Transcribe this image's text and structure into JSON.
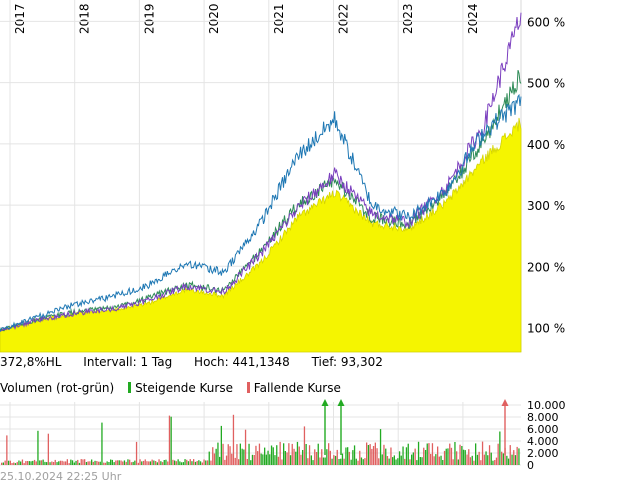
{
  "chart_data": [
    {
      "type": "area",
      "x_labels": [
        "2017",
        "2018",
        "2019",
        "2020",
        "2021",
        "2022",
        "2023",
        "2024"
      ],
      "y_ticks": [
        100,
        200,
        300,
        400,
        500,
        600
      ],
      "y_tick_labels": [
        "100 %",
        "200 %",
        "300 %",
        "400 %",
        "500 %",
        "600 %"
      ],
      "ylim": [
        60,
        635
      ],
      "grid": true,
      "series": [
        {
          "color": "#f5f500",
          "values": [
            95,
            112,
            122,
            128,
            140,
            162,
            152,
            205,
            280,
            320,
            270,
            262,
            305,
            375,
            435
          ]
        },
        {
          "color": "#2e8b57",
          "values": [
            95,
            113,
            125,
            132,
            148,
            170,
            160,
            225,
            300,
            340,
            280,
            270,
            320,
            405,
            515
          ]
        },
        {
          "color": "#7b3fbf",
          "values": [
            95,
            112,
            123,
            130,
            145,
            168,
            158,
            220,
            295,
            350,
            285,
            272,
            330,
            430,
            610
          ]
        },
        {
          "color": "#1f78b4",
          "values": [
            95,
            118,
            138,
            150,
            170,
            205,
            190,
            270,
            380,
            440,
            300,
            280,
            325,
            420,
            470
          ]
        }
      ]
    },
    {
      "type": "bar",
      "ylabel": "Volumen (rot-grün)",
      "y_ticks": [
        0,
        2000,
        4000,
        6000,
        8000,
        10000
      ],
      "y_tick_labels": [
        "0",
        "2.000",
        "4.000",
        "6.000",
        "8.000",
        "10.000"
      ],
      "ylim": [
        0,
        10500
      ],
      "colors": {
        "up": "#22aa22",
        "down": "#e06060"
      }
    }
  ],
  "info": {
    "perf": "372,8%HL",
    "interval": "Intervall: 1 Tag",
    "high": "Hoch: 441,1348",
    "low": "Tief:  93,302"
  },
  "volume_legend": {
    "title": "Volumen (rot-grün)",
    "up": "Steigende Kurse",
    "down": "Fallende Kurse"
  },
  "footer": "25.10.2024 22:25 Uhr"
}
